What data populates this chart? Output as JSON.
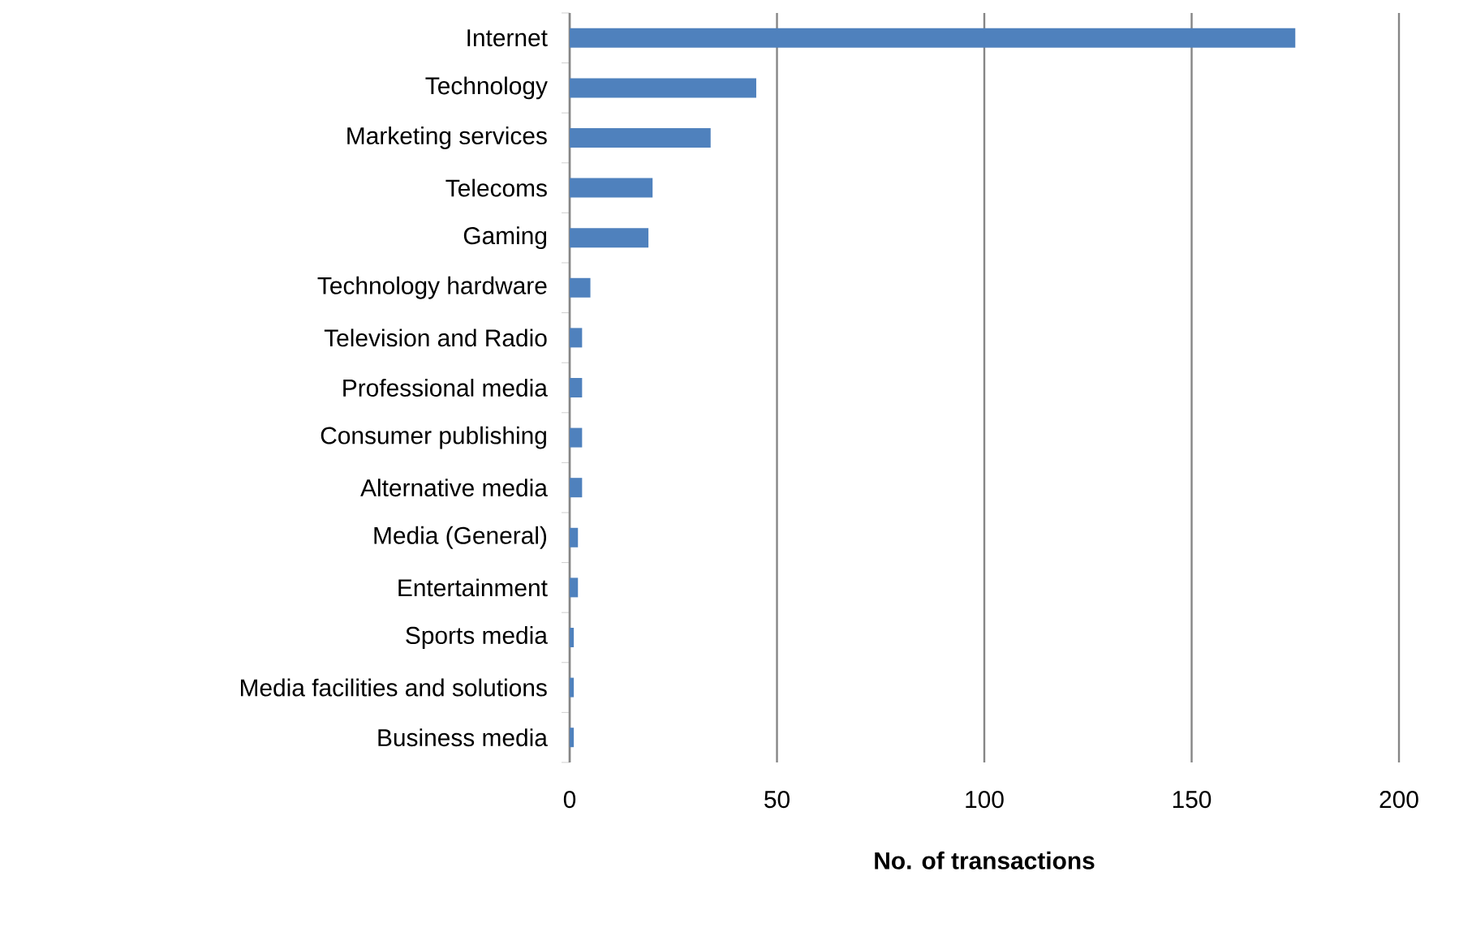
{
  "chart_data": {
    "type": "bar",
    "orientation": "horizontal",
    "xlabel": "No. of transactions",
    "categories": [
      "Internet",
      "Technology",
      "Marketing services",
      "Telecoms",
      "Gaming",
      "Technology hardware",
      "Television and Radio",
      "Professional media",
      "Consumer publishing",
      "Alternative media",
      "Media (General)",
      "Entertainment",
      "Sports media",
      "Media facilities and solutions",
      "Business media"
    ],
    "values": [
      175,
      45,
      34,
      20,
      19,
      5,
      3,
      3,
      3,
      3,
      2,
      2,
      1,
      1,
      1
    ],
    "color": "#4f81bd",
    "xlim": [
      0,
      200
    ],
    "xticks": [
      0,
      50,
      100,
      150,
      200
    ],
    "grid": "x"
  }
}
